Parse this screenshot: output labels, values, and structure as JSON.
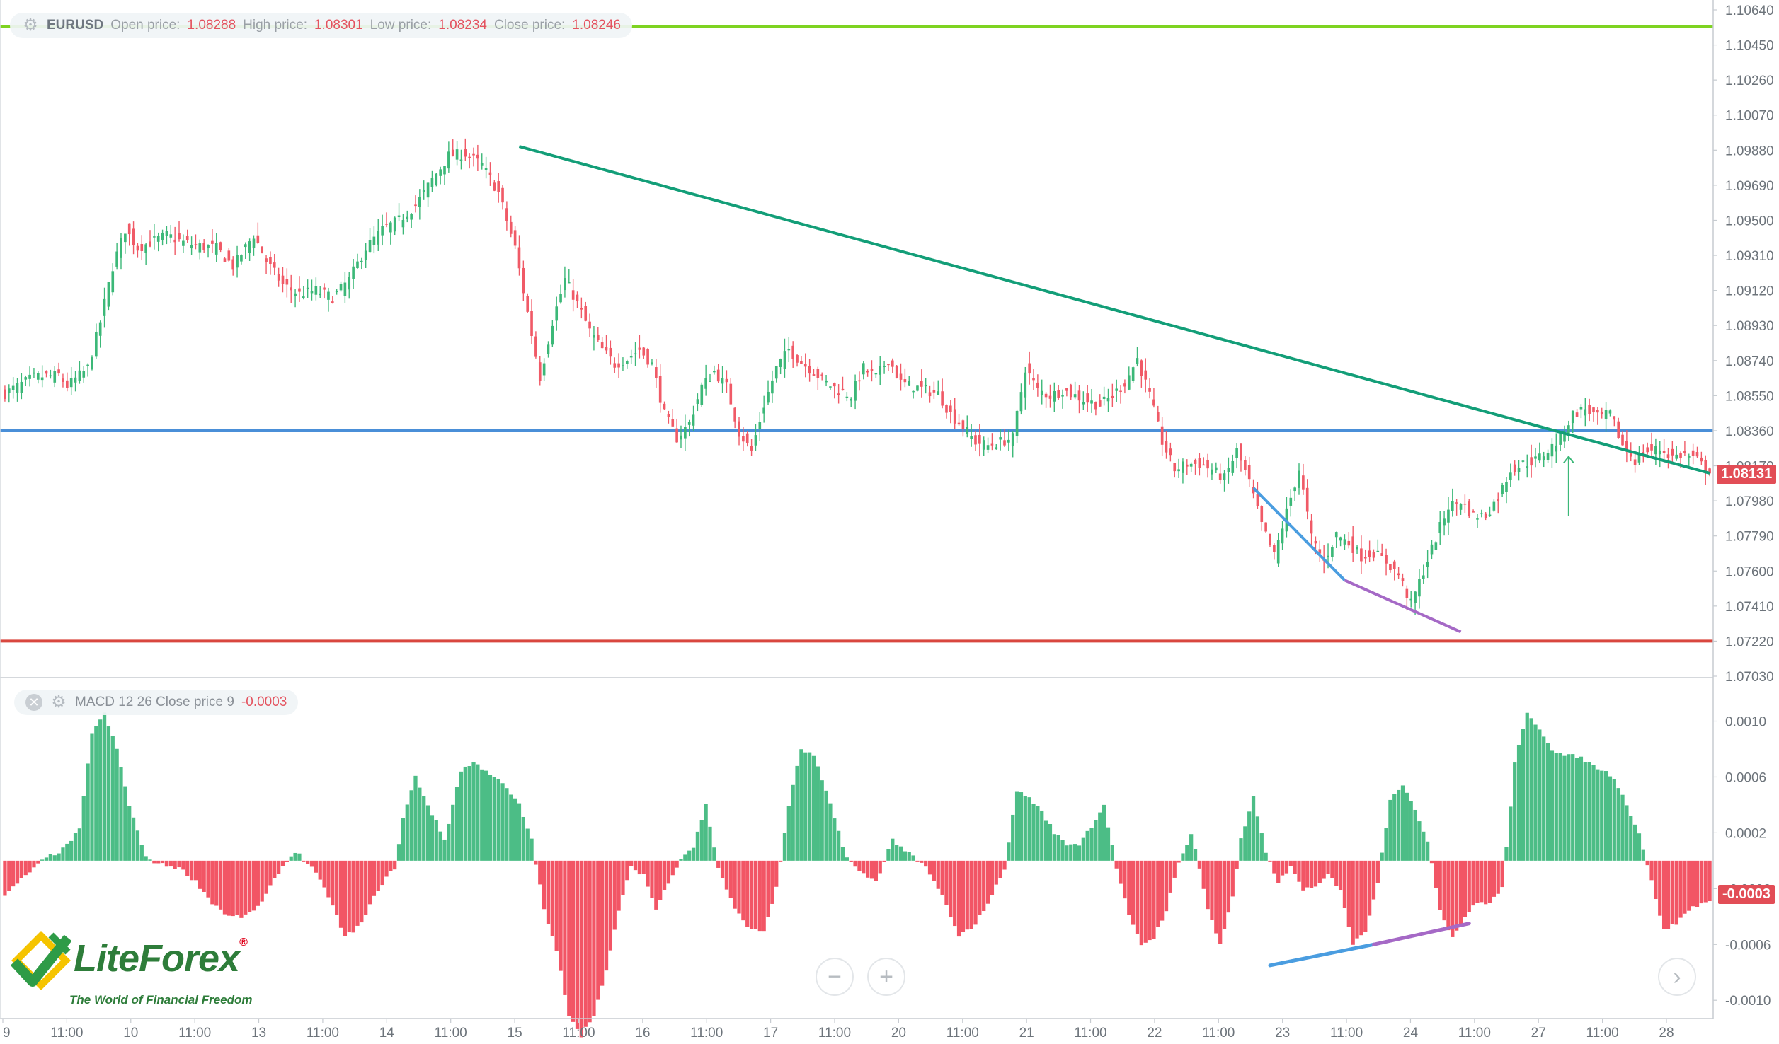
{
  "header": {
    "symbol": "EURUSD",
    "open_label": "Open price:",
    "open_value": "1.08288",
    "high_label": "High price:",
    "high_value": "1.08301",
    "low_label": "Low price:",
    "low_value": "1.08234",
    "close_label": "Close price:",
    "close_value": "1.08246"
  },
  "macd_header": {
    "label": "MACD 12 26 Close price 9",
    "value": "-0.0003"
  },
  "current_price_tag": "1.08131",
  "macd_value_tag": "-0.0003",
  "logo": {
    "name": "LiteForex",
    "tagline": "The World of Financial Freedom"
  },
  "controls": {
    "zoom_out": "−",
    "zoom_in": "+",
    "scroll_right": "›"
  },
  "colors": {
    "bull": "#3cb878",
    "bear": "#f05a67",
    "trendline": "#139e78",
    "support_blue": "#4a8fd8",
    "resistance_green": "#7ed321",
    "level_red": "#d9473f",
    "divergence_blue": "#4a9de0",
    "divergence_purple": "#a569c6",
    "macd_pos": "#4cbd86",
    "macd_neg": "#f25565"
  },
  "chart_data": [
    {
      "type": "candlestick",
      "symbol": "EURUSD",
      "ylim": [
        1.0703,
        1.1064
      ],
      "y_ticks": [
        "1.10640",
        "1.10450",
        "1.10260",
        "1.10070",
        "1.09880",
        "1.09690",
        "1.09500",
        "1.09310",
        "1.09120",
        "1.08930",
        "1.08740",
        "1.08550",
        "1.08360",
        "1.08170",
        "1.07980",
        "1.07790",
        "1.07600",
        "1.07410",
        "1.07220",
        "1.07030"
      ],
      "x_ticks": [
        "9",
        "11:00",
        "10",
        "11:00",
        "13",
        "11:00",
        "14",
        "11:00",
        "15",
        "11:00",
        "16",
        "11:00",
        "17",
        "11:00",
        "20",
        "11:00",
        "21",
        "11:00",
        "22",
        "11:00",
        "23",
        "11:00",
        "24",
        "11:00",
        "27",
        "11:00",
        "28"
      ],
      "series_path": [
        [
          0,
          1.0855
        ],
        [
          8,
          1.0865
        ],
        [
          14,
          1.0866
        ],
        [
          16,
          1.086
        ],
        [
          21,
          1.087
        ],
        [
          24,
          1.0895
        ],
        [
          27,
          1.0925
        ],
        [
          30,
          1.0945
        ],
        [
          33,
          1.0935
        ],
        [
          36,
          1.0938
        ],
        [
          40,
          1.0942
        ],
        [
          44,
          1.0938
        ],
        [
          48,
          1.0936
        ],
        [
          52,
          1.0935
        ],
        [
          56,
          1.0925
        ],
        [
          61,
          1.0942
        ],
        [
          64,
          1.0928
        ],
        [
          68,
          1.0915
        ],
        [
          72,
          1.091
        ],
        [
          76,
          1.0912
        ],
        [
          80,
          1.0908
        ],
        [
          84,
          1.0918
        ],
        [
          88,
          1.0935
        ],
        [
          92,
          1.0945
        ],
        [
          96,
          1.095
        ],
        [
          100,
          1.0958
        ],
        [
          104,
          1.0972
        ],
        [
          108,
          1.0985
        ],
        [
          112,
          1.0986
        ],
        [
          116,
          1.098
        ],
        [
          120,
          1.0965
        ],
        [
          124,
          1.0935
        ],
        [
          127,
          1.09
        ],
        [
          130,
          1.0865
        ],
        [
          133,
          1.0895
        ],
        [
          136,
          1.0918
        ],
        [
          139,
          1.0905
        ],
        [
          142,
          1.089
        ],
        [
          145,
          1.088
        ],
        [
          148,
          1.0872
        ],
        [
          151,
          1.0875
        ],
        [
          154,
          1.088
        ],
        [
          157,
          1.0872
        ],
        [
          160,
          1.0845
        ],
        [
          163,
          1.0832
        ],
        [
          166,
          1.084
        ],
        [
          169,
          1.086
        ],
        [
          172,
          1.0868
        ],
        [
          175,
          1.086
        ],
        [
          178,
          1.0835
        ],
        [
          181,
          1.0825
        ],
        [
          184,
          1.085
        ],
        [
          187,
          1.087
        ],
        [
          190,
          1.088
        ],
        [
          193,
          1.0873
        ],
        [
          196,
          1.0868
        ],
        [
          199,
          1.0862
        ],
        [
          202,
          1.0858
        ],
        [
          205,
          1.0855
        ],
        [
          208,
          1.087
        ],
        [
          211,
          1.0865
        ],
        [
          214,
          1.0875
        ],
        [
          217,
          1.0862
        ],
        [
          220,
          1.086
        ],
        [
          223,
          1.0858
        ],
        [
          226,
          1.0856
        ],
        [
          229,
          1.0845
        ],
        [
          232,
          1.0838
        ],
        [
          235,
          1.083
        ],
        [
          238,
          1.0828
        ],
        [
          241,
          1.083
        ],
        [
          244,
          1.0832
        ],
        [
          247,
          1.087
        ],
        [
          250,
          1.0858
        ],
        [
          253,
          1.0855
        ],
        [
          256,
          1.0858
        ],
        [
          259,
          1.0855
        ],
        [
          262,
          1.0852
        ],
        [
          265,
          1.085
        ],
        [
          268,
          1.0855
        ],
        [
          271,
          1.0862
        ],
        [
          274,
          1.0875
        ],
        [
          277,
          1.0855
        ],
        [
          280,
          1.083
        ],
        [
          283,
          1.0815
        ],
        [
          286,
          1.0818
        ],
        [
          289,
          1.0818
        ],
        [
          292,
          1.0815
        ],
        [
          295,
          1.081
        ],
        [
          298,
          1.0825
        ],
        [
          301,
          1.0808
        ],
        [
          304,
          1.0785
        ],
        [
          307,
          1.0768
        ],
        [
          310,
          1.0792
        ],
        [
          313,
          1.0815
        ],
        [
          316,
          1.0778
        ],
        [
          319,
          1.0765
        ],
        [
          322,
          1.078
        ],
        [
          325,
          1.0775
        ],
        [
          328,
          1.0768
        ],
        [
          331,
          1.077
        ],
        [
          334,
          1.0765
        ],
        [
          337,
          1.0758
        ],
        [
          340,
          1.0742
        ],
        [
          343,
          1.076
        ],
        [
          346,
          1.0778
        ],
        [
          349,
          1.0795
        ],
        [
          352,
          1.0798
        ],
        [
          355,
          1.079
        ],
        [
          358,
          1.079
        ],
        [
          361,
          1.08
        ],
        [
          364,
          1.0815
        ],
        [
          367,
          1.0818
        ],
        [
          370,
          1.082
        ],
        [
          373,
          1.0825
        ],
        [
          376,
          1.0832
        ],
        [
          379,
          1.0845
        ],
        [
          382,
          1.0848
        ],
        [
          385,
          1.0843
        ],
        [
          388,
          1.0845
        ],
        [
          391,
          1.0828
        ],
        [
          394,
          1.082
        ],
        [
          397,
          1.0825
        ],
        [
          400,
          1.0826
        ],
        [
          403,
          1.0822
        ],
        [
          406,
          1.0823
        ],
        [
          409,
          1.082
        ],
        [
          411,
          1.0815
        ]
      ],
      "n_bars": 412,
      "bull_color": "#3cb878",
      "bear_color": "#f05a67",
      "last_price": 1.08131,
      "lines": [
        {
          "name": "horizontal-resistance",
          "color": "#7ed321",
          "points": [
            [
              0,
              1.1055
            ],
            [
              411,
              1.1055
            ]
          ]
        },
        {
          "name": "horizontal-support",
          "color": "#4a8fd8",
          "points": [
            [
              0,
              1.0836
            ],
            [
              411,
              1.0836
            ]
          ]
        },
        {
          "name": "horizontal-low",
          "color": "#d9473f",
          "points": [
            [
              0,
              1.0722
            ],
            [
              411,
              1.0722
            ]
          ]
        },
        {
          "name": "descending-trendline",
          "color": "#139e78",
          "points": [
            [
              124,
              1.099
            ],
            [
              411,
              1.0813
            ]
          ]
        },
        {
          "name": "price-divergence-a",
          "color": "#4a9de0",
          "points": [
            [
              301,
              1.0805
            ],
            [
              323,
              1.0755
            ]
          ]
        },
        {
          "name": "price-divergence-b",
          "color": "#a569c6",
          "points": [
            [
              323,
              1.0755
            ],
            [
              351,
              1.0727
            ]
          ]
        }
      ],
      "annotations": [
        {
          "type": "arrow-up",
          "x": 377,
          "from": 1.079,
          "to": 1.0822,
          "color": "#3cb878"
        }
      ],
      "grid": false
    },
    {
      "type": "bar",
      "name": "MACD 12 26 Close price 9",
      "ylim": [
        -0.00108,
        0.00118
      ],
      "y_ticks": [
        "0.0010",
        "0.0006",
        "0.0002",
        "-0.0002",
        "-0.0006",
        "-0.0010"
      ],
      "hist_path": [
        [
          0,
          -0.00025
        ],
        [
          6,
          -8e-05
        ],
        [
          10,
          2e-05
        ],
        [
          14,
          8e-05
        ],
        [
          18,
          0.00022
        ],
        [
          21,
          0.00092
        ],
        [
          24,
          0.00105
        ],
        [
          27,
          0.0008
        ],
        [
          30,
          0.0004
        ],
        [
          34,
          2e-05
        ],
        [
          38,
          -3e-05
        ],
        [
          42,
          -5e-05
        ],
        [
          46,
          -0.00015
        ],
        [
          50,
          -0.0003
        ],
        [
          54,
          -0.0004
        ],
        [
          58,
          -0.0004
        ],
        [
          62,
          -0.0003
        ],
        [
          66,
          -8e-05
        ],
        [
          70,
          7e-05
        ],
        [
          74,
          -5e-05
        ],
        [
          78,
          -0.00025
        ],
        [
          82,
          -0.00055
        ],
        [
          86,
          -0.00045
        ],
        [
          90,
          -0.0002
        ],
        [
          94,
          -5e-05
        ],
        [
          96,
          0.0003
        ],
        [
          99,
          0.0006
        ],
        [
          102,
          0.0004
        ],
        [
          106,
          0.00015
        ],
        [
          110,
          0.00065
        ],
        [
          113,
          0.0007
        ],
        [
          116,
          0.00065
        ],
        [
          120,
          0.00055
        ],
        [
          124,
          0.0004
        ],
        [
          127,
          0.00015
        ],
        [
          130,
          -0.00035
        ],
        [
          133,
          -0.00065
        ],
        [
          136,
          -0.0011
        ],
        [
          139,
          -0.00125
        ],
        [
          142,
          -0.0011
        ],
        [
          145,
          -0.0008
        ],
        [
          148,
          -0.00035
        ],
        [
          151,
          -5e-05
        ],
        [
          154,
          -0.0001
        ],
        [
          157,
          -0.00035
        ],
        [
          160,
          -0.00015
        ],
        [
          163,
          2e-05
        ],
        [
          166,
          0.0001
        ],
        [
          169,
          0.0004
        ],
        [
          172,
          -5e-05
        ],
        [
          176,
          -0.00035
        ],
        [
          180,
          -0.0005
        ],
        [
          183,
          -0.0005
        ],
        [
          186,
          -0.0002
        ],
        [
          189,
          0.0004
        ],
        [
          192,
          0.0008
        ],
        [
          195,
          0.00075
        ],
        [
          199,
          0.0004
        ],
        [
          203,
          2e-05
        ],
        [
          206,
          -8e-05
        ],
        [
          210,
          -0.00015
        ],
        [
          214,
          0.00015
        ],
        [
          218,
          5e-05
        ],
        [
          222,
          -5e-05
        ],
        [
          226,
          -0.00025
        ],
        [
          230,
          -0.00055
        ],
        [
          234,
          -0.00045
        ],
        [
          238,
          -0.00025
        ],
        [
          241,
          -5e-05
        ],
        [
          244,
          0.0005
        ],
        [
          247,
          0.00045
        ],
        [
          250,
          0.00035
        ],
        [
          253,
          0.0002
        ],
        [
          256,
          0.00012
        ],
        [
          259,
          0.00012
        ],
        [
          262,
          0.00025
        ],
        [
          265,
          0.0004
        ],
        [
          268,
          -5e-05
        ],
        [
          271,
          -0.0004
        ],
        [
          274,
          -0.0006
        ],
        [
          277,
          -0.00055
        ],
        [
          280,
          -0.00035
        ],
        [
          283,
          -2e-05
        ],
        [
          286,
          0.0002
        ],
        [
          288,
          -5e-05
        ],
        [
          290,
          -0.00035
        ],
        [
          293,
          -0.0006
        ],
        [
          296,
          -0.00025
        ],
        [
          298,
          0.00015
        ],
        [
          301,
          0.00045
        ],
        [
          304,
          5e-05
        ],
        [
          307,
          -0.00015
        ],
        [
          310,
          -5e-05
        ],
        [
          313,
          -0.0002
        ],
        [
          316,
          -0.0002
        ],
        [
          319,
          -0.0001
        ],
        [
          322,
          -0.0002
        ],
        [
          325,
          -0.0006
        ],
        [
          328,
          -0.0005
        ],
        [
          331,
          -0.00015
        ],
        [
          334,
          0.00045
        ],
        [
          337,
          0.00055
        ],
        [
          340,
          0.00035
        ],
        [
          343,
          0.00015
        ],
        [
          346,
          -0.00035
        ],
        [
          349,
          -0.00055
        ],
        [
          352,
          -0.0004
        ],
        [
          355,
          -0.0003
        ],
        [
          358,
          -0.0003
        ],
        [
          361,
          -0.0002
        ],
        [
          364,
          0.0007
        ],
        [
          367,
          0.00105
        ],
        [
          370,
          0.00095
        ],
        [
          373,
          0.0008
        ],
        [
          376,
          0.00075
        ],
        [
          379,
          0.00075
        ],
        [
          382,
          0.0007
        ],
        [
          385,
          0.00065
        ],
        [
          388,
          0.0006
        ],
        [
          391,
          0.0004
        ],
        [
          394,
          0.0002
        ],
        [
          397,
          -0.00015
        ],
        [
          400,
          -0.0005
        ],
        [
          403,
          -0.00045
        ],
        [
          406,
          -0.00035
        ],
        [
          409,
          -0.0003
        ],
        [
          411,
          -0.0003
        ]
      ],
      "lines": [
        {
          "name": "macd-divergence-a",
          "color": "#4a9de0",
          "points": [
            [
              305,
              -0.00075
            ],
            [
              330,
              -0.0006
            ]
          ]
        },
        {
          "name": "macd-divergence-b",
          "color": "#a569c6",
          "points": [
            [
              330,
              -0.0006
            ],
            [
              353,
              -0.00045
            ]
          ]
        }
      ]
    }
  ]
}
